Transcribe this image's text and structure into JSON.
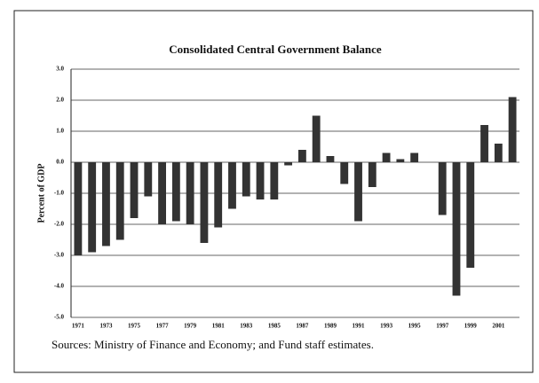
{
  "chart_data": {
    "type": "bar",
    "title": "Consolidated Central Government Balance",
    "ylabel": "Percent of GDP",
    "source": "Sources: Ministry of Finance and Economy; and Fund staff estimates.",
    "categories": [
      "1971",
      null,
      "1973",
      null,
      "1975",
      null,
      "1977",
      null,
      "1979",
      null,
      "1981",
      null,
      "1983",
      null,
      "1985",
      null,
      "1987",
      null,
      "1989",
      null,
      "1991",
      null,
      "1993",
      null,
      "1995",
      null,
      "1997",
      null,
      "1999",
      null,
      "2001",
      null
    ],
    "values": [
      -3.0,
      -2.9,
      -2.7,
      -2.5,
      -1.8,
      -1.1,
      -2.0,
      -1.9,
      -2.0,
      -2.6,
      -2.1,
      -1.5,
      -1.1,
      -1.2,
      -1.2,
      -0.1,
      0.4,
      1.5,
      0.2,
      -0.7,
      -1.9,
      -0.8,
      0.3,
      0.1,
      0.3,
      0.0,
      -1.7,
      -4.3,
      -3.4,
      1.2,
      0.6,
      2.1
    ],
    "color": "#333333",
    "ylim": [
      -5,
      3
    ],
    "yticks": [
      {
        "value": 3,
        "label": "3.0"
      },
      {
        "value": 2,
        "label": "2.0"
      },
      {
        "value": 1,
        "label": "1.0"
      },
      {
        "value": 0,
        "label": "0.0"
      },
      {
        "value": -1,
        "label": "-1.0"
      },
      {
        "value": -2,
        "label": "-2.0"
      },
      {
        "value": -3,
        "label": "-3.0"
      },
      {
        "value": -4,
        "label": "-4.0"
      },
      {
        "value": -5,
        "label": "-5.0"
      }
    ],
    "grid": true
  }
}
